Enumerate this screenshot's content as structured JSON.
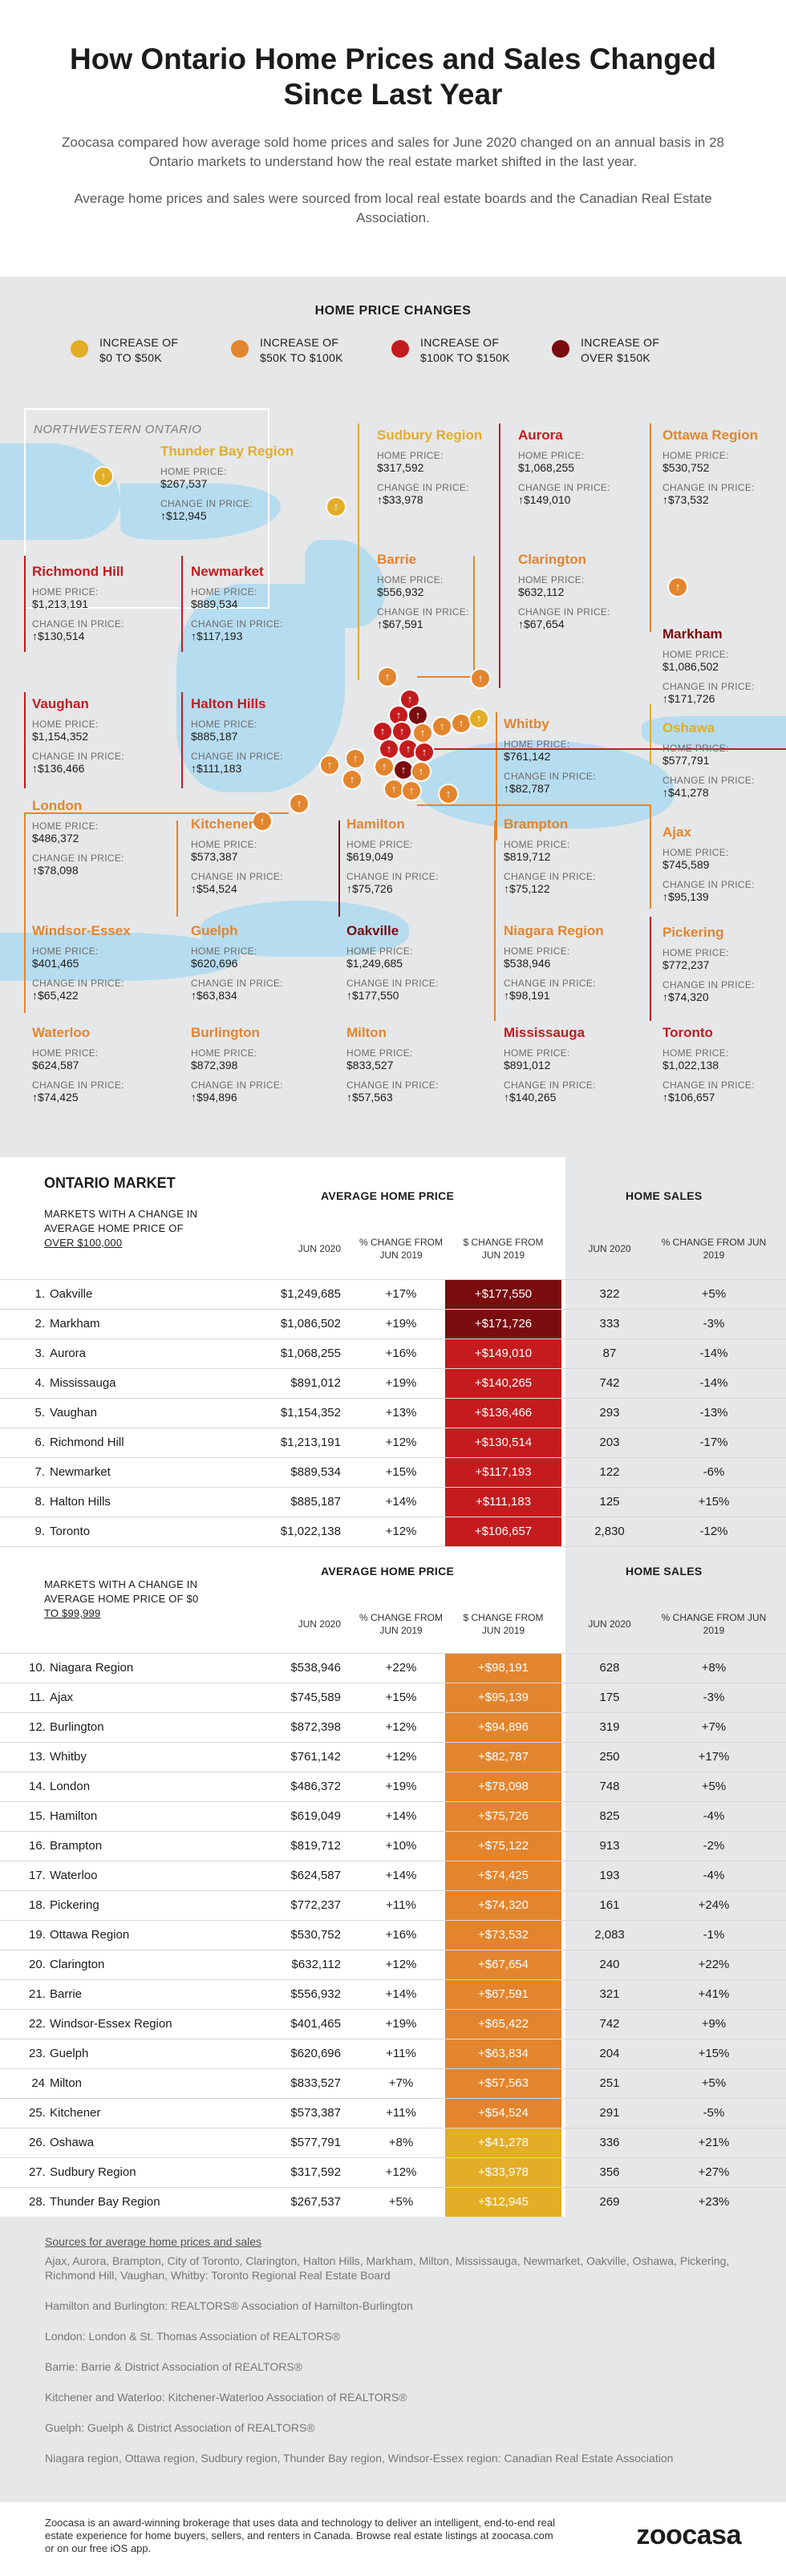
{
  "title": "How Ontario Home Prices and Sales Changed Since Last Year",
  "intro": "Zoocasa compared how average sold home prices and sales for June 2020 changed on an annual basis in 28 Ontario markets to understand how the real estate market shifted in the last year.",
  "intro2": "Average home prices and sales were sourced from local real estate boards and the Canadian Real Estate Association.",
  "legend": {
    "title": "HOME PRICE CHANGES",
    "items": [
      {
        "label1": "INCREASE OF",
        "label2": "$0 TO $50K",
        "color": "#e3ad28"
      },
      {
        "label1": "INCREASE OF",
        "label2": "$50K TO $100K",
        "color": "#e3852e"
      },
      {
        "label1": "INCREASE OF",
        "label2": "$100K TO $150K",
        "color": "#c41c1e"
      },
      {
        "label1": "INCREASE OF",
        "label2": "OVER $150K",
        "color": "#7a0c0e"
      }
    ]
  },
  "map": {
    "region_label": "NORTHWESTERN ONTARIO",
    "home_price_label": "HOME PRICE:",
    "change_label": "CHANGE IN PRICE:",
    "change_label_wrap1": "CHANGE",
    "change_label_wrap2": "in PRICE:",
    "cards": [
      {
        "name": "Thunder Bay Region",
        "price": "$267,537",
        "change": "$12,945",
        "color": "#e3ad28"
      },
      {
        "name": "Sudbury Region",
        "price": "$317,592",
        "change": "$33,978",
        "color": "#e3ad28"
      },
      {
        "name": "Aurora",
        "price": "$1,068,255",
        "change": "$149,010",
        "color": "#c41c1e"
      },
      {
        "name": "Ottawa Region",
        "price": "$530,752",
        "change": "$73,532",
        "color": "#e3852e"
      },
      {
        "name": "Richmond Hill",
        "price": "$1,213,191",
        "change": "$130,514",
        "color": "#c41c1e"
      },
      {
        "name": "Newmarket",
        "price": "$889,534",
        "change": "$117,193",
        "color": "#c41c1e"
      },
      {
        "name": "Barrie",
        "price": "$556,932",
        "change": "$67,591",
        "color": "#e3852e"
      },
      {
        "name": "Clarington",
        "price": "$632,112",
        "change": "$67,654",
        "color": "#e3852e"
      },
      {
        "name": "Markham",
        "price": "$1,086,502",
        "change": "$171,726",
        "color": "#7a0c0e"
      },
      {
        "name": "Vaughan",
        "price": "$1,154,352",
        "change": "$136,466",
        "color": "#c41c1e"
      },
      {
        "name": "Halton Hills",
        "price": "$885,187",
        "change": "$111,183",
        "color": "#c41c1e"
      },
      {
        "name": "Whitby",
        "price": "$761,142",
        "change": "$82,787",
        "color": "#e3852e"
      },
      {
        "name": "Oshawa",
        "price": "$577,791",
        "change": "$41,278",
        "color": "#e3ad28"
      },
      {
        "name": "London",
        "price": "$486,372",
        "change": "$78,098",
        "color": "#e3852e"
      },
      {
        "name": "Kitchener",
        "price": "$573,387",
        "change": "$54,524",
        "color": "#e3852e"
      },
      {
        "name": "Hamilton",
        "price": "$619,049",
        "change": "$75,726",
        "color": "#e3852e"
      },
      {
        "name": "Brampton",
        "price": "$819,712",
        "change": "$75,122",
        "color": "#e3852e"
      },
      {
        "name": "Ajax",
        "price": "$745,589",
        "change": "$95,139",
        "color": "#e3852e"
      },
      {
        "name": "Windsor-Essex",
        "price": "$401,465",
        "change": "$65,422",
        "color": "#e3852e"
      },
      {
        "name": "Guelph",
        "price": "$620,696",
        "change": "$63,834",
        "color": "#e3852e"
      },
      {
        "name": "Oakville",
        "price": "$1,249,685",
        "change": "$177,550",
        "color": "#7a0c0e"
      },
      {
        "name": "Niagara Region",
        "price": "$538,946",
        "change": "$98,191",
        "color": "#e3852e"
      },
      {
        "name": "Pickering",
        "price": "$772,237",
        "change": "$74,320",
        "color": "#e3852e"
      },
      {
        "name": "Waterloo",
        "price": "$624,587",
        "change": "$74,425",
        "color": "#e3852e"
      },
      {
        "name": "Burlington",
        "price": "$872,398",
        "change": "$94,896",
        "color": "#e3852e"
      },
      {
        "name": "Milton",
        "price": "$833,527",
        "change": "$57,563",
        "color": "#e3852e"
      },
      {
        "name": "Mississauga",
        "price": "$891,012",
        "change": "$140,265",
        "color": "#c41c1e"
      },
      {
        "name": "Toronto",
        "price": "$1,022,138",
        "change": "$106,657",
        "color": "#c41c1e"
      }
    ]
  },
  "table": {
    "market_title": "ONTARIO MARKET",
    "group_avg": "AVERAGE HOME PRICE",
    "group_sales": "HOME SALES",
    "col_jun": "JUN 2020",
    "col_pct": "% CHANGE FROM JUN 2019",
    "col_dollar": "$ CHANGE FROM JUN 2019",
    "col_sales_pct": "% CHANGE FROM JUN 2019",
    "crit1_a": "MARKETS WITH A CHANGE IN",
    "crit1_b": "AVERAGE HOME PRICE OF",
    "crit1_c": "OVER $100,000",
    "crit2_a": "MARKETS WITH A CHANGE IN",
    "crit2_b": "AVERAGE HOME PRICE OF $0",
    "crit2_c": "TO $99,999",
    "rows1": [
      [
        "1.",
        "Oakville",
        "$1,249,685",
        "+17%",
        "+$177,550",
        "322",
        "+5%",
        "#7a0c0e"
      ],
      [
        "2.",
        "Markham",
        "$1,086,502",
        "+19%",
        "+$171,726",
        "333",
        "-3%",
        "#7a0c0e"
      ],
      [
        "3.",
        "Aurora",
        "$1,068,255",
        "+16%",
        "+$149,010",
        "87",
        "-14%",
        "#c41c1e"
      ],
      [
        "4.",
        "Mississauga",
        "$891,012",
        "+19%",
        "+$140,265",
        "742",
        "-14%",
        "#c41c1e"
      ],
      [
        "5.",
        "Vaughan",
        "$1,154,352",
        "+13%",
        "+$136,466",
        "293",
        "-13%",
        "#c41c1e"
      ],
      [
        "6.",
        "Richmond Hill",
        "$1,213,191",
        "+12%",
        "+$130,514",
        "203",
        "-17%",
        "#c41c1e"
      ],
      [
        "7.",
        "Newmarket",
        "$889,534",
        "+15%",
        "+$117,193",
        "122",
        "-6%",
        "#c41c1e"
      ],
      [
        "8.",
        "Halton Hills",
        "$885,187",
        "+14%",
        "+$111,183",
        "125",
        "+15%",
        "#c41c1e"
      ],
      [
        "9.",
        "Toronto",
        "$1,022,138",
        "+12%",
        "+$106,657",
        "2,830",
        "-12%",
        "#c41c1e"
      ]
    ],
    "rows2": [
      [
        "10.",
        "Niagara Region",
        "$538,946",
        "+22%",
        "+$98,191",
        "628",
        "+8%",
        "#e3852e"
      ],
      [
        "11.",
        "Ajax",
        "$745,589",
        "+15%",
        "+$95,139",
        "175",
        "-3%",
        "#e3852e"
      ],
      [
        "12.",
        "Burlington",
        "$872,398",
        "+12%",
        "+$94,896",
        "319",
        "+7%",
        "#e3852e"
      ],
      [
        "13.",
        "Whitby",
        "$761,142",
        "+12%",
        "+$82,787",
        "250",
        "+17%",
        "#e3852e"
      ],
      [
        "14.",
        "London",
        "$486,372",
        "+19%",
        "+$78,098",
        "748",
        "+5%",
        "#e3852e"
      ],
      [
        "15.",
        "Hamilton",
        "$619,049",
        "+14%",
        "+$75,726",
        "825",
        "-4%",
        "#e3852e"
      ],
      [
        "16.",
        "Brampton",
        "$819,712",
        "+10%",
        "+$75,122",
        "913",
        "-2%",
        "#e3852e"
      ],
      [
        "17.",
        "Waterloo",
        "$624,587",
        "+14%",
        "+$74,425",
        "193",
        "-4%",
        "#e3852e"
      ],
      [
        "18.",
        "Pickering",
        "$772,237",
        "+11%",
        "+$74,320",
        "161",
        "+24%",
        "#e3852e"
      ],
      [
        "19.",
        "Ottawa Region",
        "$530,752",
        "+16%",
        "+$73,532",
        "2,083",
        "-1%",
        "#e3852e"
      ],
      [
        "20.",
        "Clarington",
        "$632,112",
        "+12%",
        "+$67,654",
        "240",
        "+22%",
        "#e3852e"
      ],
      [
        "21.",
        "Barrie",
        "$556,932",
        "+14%",
        "+$67,591",
        "321",
        "+41%",
        "#e3852e"
      ],
      [
        "22.",
        "Windsor-Essex Region",
        "$401,465",
        "+19%",
        "+$65,422",
        "742",
        "+9%",
        "#e3852e"
      ],
      [
        "23.",
        "Guelph",
        "$620,696",
        "+11%",
        "+$63,834",
        "204",
        "+15%",
        "#e3852e"
      ],
      [
        "24",
        "Milton",
        "$833,527",
        "+7%",
        "+$57,563",
        "251",
        "+5%",
        "#e3852e"
      ],
      [
        "25.",
        "Kitchener",
        "$573,387",
        "+11%",
        "+$54,524",
        "291",
        "-5%",
        "#e3852e"
      ],
      [
        "26.",
        "Oshawa",
        "$577,791",
        "+8%",
        "+$41,278",
        "336",
        "+21%",
        "#e3ad28"
      ],
      [
        "27.",
        "Sudbury Region",
        "$317,592",
        "+12%",
        "+$33,978",
        "356",
        "+27%",
        "#e3ad28"
      ],
      [
        "28.",
        "Thunder Bay Region",
        "$267,537",
        "+5%",
        "+$12,945",
        "269",
        "+23%",
        "#e3ad28"
      ]
    ]
  },
  "sources": {
    "heading": "Sources for average home prices and sales",
    "lines": [
      "Ajax, Aurora, Brampton, City of Toronto, Clarington, Halton Hills, Markham, Milton, Mississauga, Newmarket, Oakville, Oshawa, Pickering, Richmond Hill, Vaughan, Whitby: Toronto Regional Real Estate Board",
      "Hamilton and Burlington: REALTORS® Association of Hamilton-Burlington",
      "London: London & St. Thomas Association of REALTORS®",
      "Barrie: Barrie & District Association of REALTORS®",
      "Kitchener and Waterloo: Kitchener-Waterloo Association of REALTORS®",
      "Guelph: Guelph & District Association of REALTORS®",
      "Niagara region, Ottawa region, Sudbury region, Thunder Bay region, Windsor-Essex region: Canadian Real Estate Association"
    ]
  },
  "footer": {
    "text": "Zoocasa is an award-winning brokerage that uses data and technology to deliver an intelligent, end-to-end real estate experience for home buyers, sellers, and renters in Canada. Browse real estate listings at zoocasa.com or on our free iOS app.",
    "logo": "zoocasa"
  }
}
